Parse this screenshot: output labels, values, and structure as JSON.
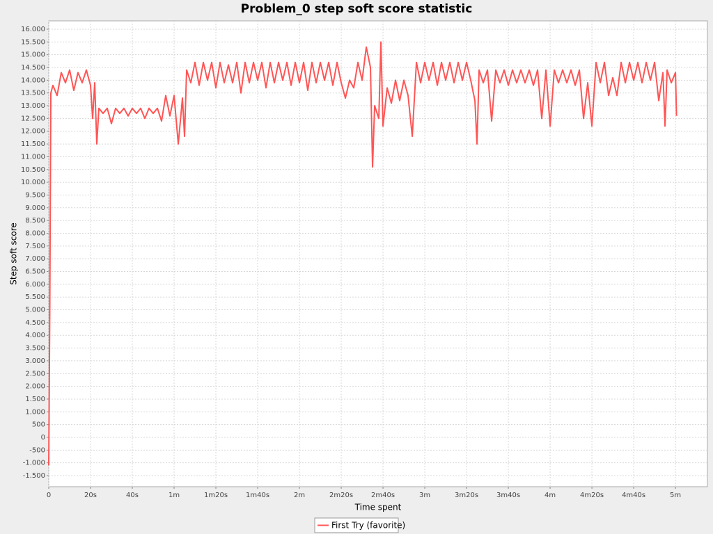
{
  "chart_data": {
    "type": "line",
    "title": "Problem_0 step soft score statistic",
    "x_label": "Time spent",
    "y_label": "Step soft score",
    "xlim": [
      0,
      315.3
    ],
    "ylim": [
      -1936,
      16327
    ],
    "grid": true,
    "legend": "bottom",
    "xticks": [
      0,
      {
        "value": 20,
        "label": "20s"
      },
      {
        "value": 40,
        "label": "40s"
      },
      {
        "value": 60,
        "label": "1m"
      },
      {
        "value": 80,
        "label": "1m20s"
      },
      {
        "value": 100,
        "label": "1m40s"
      },
      {
        "value": 120,
        "label": "2m"
      },
      {
        "value": 140,
        "label": "2m20s"
      },
      {
        "value": 160,
        "label": "2m40s"
      },
      {
        "value": 180,
        "label": "3m"
      },
      {
        "value": 200,
        "label": "3m20s"
      },
      {
        "value": 220,
        "label": "3m40s"
      },
      {
        "value": 240,
        "label": "4m"
      },
      {
        "value": 260,
        "label": "4m20s"
      },
      {
        "value": 280,
        "label": "4m40s"
      },
      {
        "value": 300,
        "label": "5m"
      }
    ],
    "yticks": [
      {
        "value": -1500,
        "label": "-1.500"
      },
      {
        "value": -1000,
        "label": "-1.000"
      },
      -500,
      0,
      500,
      {
        "value": 1000,
        "label": "1.000"
      },
      {
        "value": 1500,
        "label": "1.500"
      },
      {
        "value": 2000,
        "label": "2.000"
      },
      {
        "value": 2500,
        "label": "2.500"
      },
      {
        "value": 3000,
        "label": "3.000"
      },
      {
        "value": 3500,
        "label": "3.500"
      },
      {
        "value": 4000,
        "label": "4.000"
      },
      {
        "value": 4500,
        "label": "4.500"
      },
      {
        "value": 5000,
        "label": "5.000"
      },
      {
        "value": 5500,
        "label": "5.500"
      },
      {
        "value": 6000,
        "label": "6.000"
      },
      {
        "value": 6500,
        "label": "6.500"
      },
      {
        "value": 7000,
        "label": "7.000"
      },
      {
        "value": 7500,
        "label": "7.500"
      },
      {
        "value": 8000,
        "label": "8.000"
      },
      {
        "value": 8500,
        "label": "8.500"
      },
      {
        "value": 9000,
        "label": "9.000"
      },
      {
        "value": 9500,
        "label": "9.500"
      },
      {
        "value": 10000,
        "label": "10.000"
      },
      {
        "value": 10500,
        "label": "10.500"
      },
      {
        "value": 11000,
        "label": "11.000"
      },
      {
        "value": 11500,
        "label": "11.500"
      },
      {
        "value": 12000,
        "label": "12.000"
      },
      {
        "value": 12500,
        "label": "12.500"
      },
      {
        "value": 13000,
        "label": "13.000"
      },
      {
        "value": 13500,
        "label": "13.500"
      },
      {
        "value": 14000,
        "label": "14.000"
      },
      {
        "value": 14500,
        "label": "14.500"
      },
      {
        "value": 15000,
        "label": "15.000"
      },
      {
        "value": 15500,
        "label": "15.500"
      },
      {
        "value": 16000,
        "label": "16.000"
      }
    ],
    "x": [
      0,
      0.5,
      1,
      2,
      4,
      6,
      8,
      10,
      12,
      14,
      16,
      18,
      20,
      21,
      22,
      23,
      24,
      26,
      28,
      30,
      32,
      34,
      36,
      38,
      40,
      42,
      44,
      46,
      48,
      50,
      52,
      54,
      56,
      58,
      60,
      62,
      64,
      65,
      66,
      68,
      70,
      72,
      74,
      76,
      78,
      80,
      82,
      84,
      86,
      88,
      90,
      92,
      94,
      96,
      98,
      100,
      102,
      104,
      106,
      108,
      110,
      112,
      114,
      116,
      118,
      120,
      122,
      124,
      126,
      128,
      130,
      132,
      134,
      136,
      138,
      140,
      142,
      144,
      146,
      148,
      150,
      152,
      154,
      155,
      156,
      158,
      159,
      160,
      162,
      164,
      166,
      168,
      170,
      172,
      174,
      176,
      178,
      180,
      182,
      184,
      186,
      188,
      190,
      192,
      194,
      196,
      198,
      200,
      202,
      204,
      205,
      206,
      208,
      210,
      212,
      214,
      216,
      218,
      220,
      222,
      224,
      226,
      228,
      230,
      232,
      234,
      236,
      238,
      240,
      242,
      244,
      246,
      248,
      250,
      252,
      254,
      256,
      258,
      260,
      262,
      264,
      266,
      268,
      270,
      272,
      274,
      276,
      278,
      280,
      282,
      284,
      286,
      288,
      290,
      292,
      294,
      295,
      296,
      298,
      300,
      300.5
    ],
    "series": [
      {
        "name": "First Try (favorite)",
        "color": "#ff5555",
        "values": [
          -1100,
          5000,
          13500,
          13800,
          13400,
          14300,
          13900,
          14400,
          13600,
          14300,
          13900,
          14400,
          13800,
          12500,
          13900,
          11500,
          12900,
          12700,
          12900,
          12300,
          12900,
          12700,
          12900,
          12600,
          12900,
          12700,
          12900,
          12500,
          12900,
          12700,
          12900,
          12400,
          13400,
          12600,
          13400,
          11500,
          13300,
          11800,
          14400,
          13900,
          14700,
          13800,
          14700,
          14000,
          14700,
          13700,
          14700,
          13900,
          14600,
          13900,
          14700,
          13500,
          14700,
          13900,
          14700,
          14000,
          14700,
          13700,
          14700,
          13900,
          14700,
          14000,
          14700,
          13800,
          14700,
          13900,
          14700,
          13600,
          14700,
          13900,
          14700,
          14000,
          14700,
          13800,
          14700,
          13900,
          13300,
          14000,
          13700,
          14700,
          14000,
          15300,
          14500,
          10600,
          13000,
          12500,
          15500,
          12200,
          13700,
          13100,
          14000,
          13200,
          14000,
          13400,
          11800,
          14700,
          13900,
          14700,
          14000,
          14700,
          13800,
          14700,
          14000,
          14700,
          13900,
          14700,
          14000,
          14700,
          14000,
          13200,
          11500,
          14400,
          13900,
          14400,
          12400,
          14400,
          13900,
          14400,
          13800,
          14400,
          13900,
          14400,
          13900,
          14400,
          13800,
          14400,
          12500,
          14400,
          12200,
          14400,
          13900,
          14400,
          13900,
          14400,
          13800,
          14400,
          12500,
          13900,
          12200,
          14700,
          13900,
          14700,
          13400,
          14100,
          13400,
          14700,
          13900,
          14700,
          14000,
          14700,
          13900,
          14700,
          14000,
          14700,
          13200,
          14300,
          12200,
          14400,
          13900,
          14300,
          12600
        ]
      }
    ]
  }
}
